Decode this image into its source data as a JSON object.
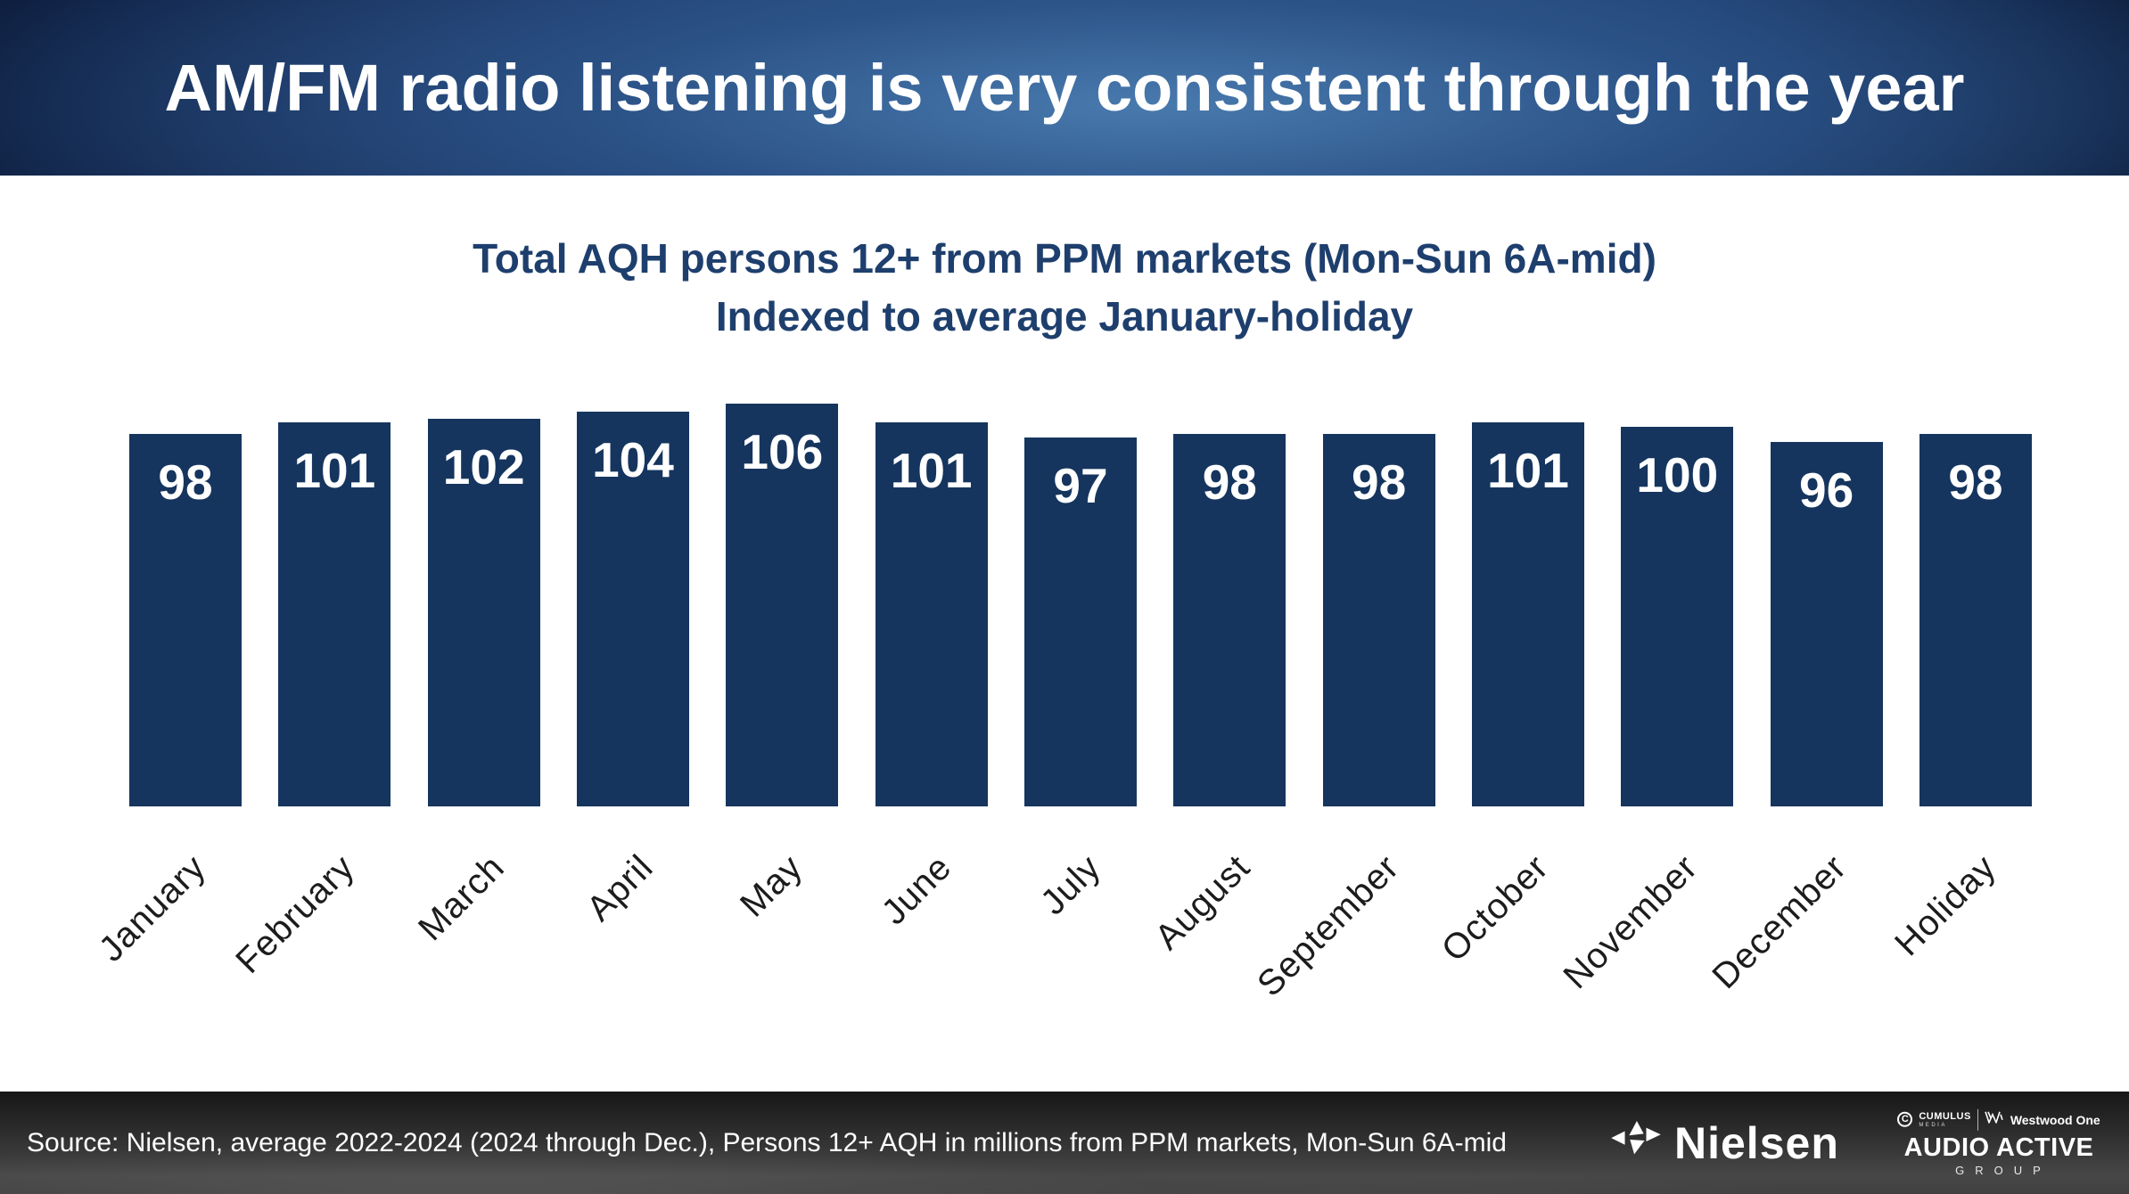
{
  "header": {
    "title": "AM/FM radio listening is very consistent through the year"
  },
  "subtitle": {
    "line1": "Total AQH persons 12+ from PPM markets (Mon-Sun 6A-mid)",
    "line2": "Indexed to average January-holiday"
  },
  "chart_data": {
    "type": "bar",
    "title": "Total AQH persons 12+ from PPM markets (Mon-Sun 6A-mid) Indexed to average January-holiday",
    "categories": [
      "January",
      "February",
      "March",
      "April",
      "May",
      "June",
      "July",
      "August",
      "September",
      "October",
      "November",
      "December",
      "Holiday"
    ],
    "values": [
      98,
      101,
      102,
      104,
      106,
      101,
      97,
      98,
      98,
      101,
      100,
      96,
      98
    ],
    "xlabel": "",
    "ylabel": "",
    "ylim": [
      0,
      106
    ],
    "grid": false,
    "legend": false,
    "axes_visible": false,
    "bar_color": "#15355e",
    "value_label_color": "#ffffff"
  },
  "footer": {
    "source_text": "Source: Nielsen, average 2022-2024 (2024 through Dec.), Persons 12+ AQH in millions from PPM markets, Mon-Sun 6A-mid",
    "nielsen_wordmark": "Nielsen",
    "cumulus": "CUMULUS",
    "cumulus_media": "MEDIA",
    "westwood_one": "Westwood One",
    "audio_active": "AUDIO ACTIVE",
    "group": "GROUP"
  },
  "colors": {
    "bar": "#15355e",
    "subtitle_text": "#1e3f6d",
    "header_text": "#ffffff",
    "footer_text": "#ffffff",
    "month_label": "#1c1c1c"
  }
}
